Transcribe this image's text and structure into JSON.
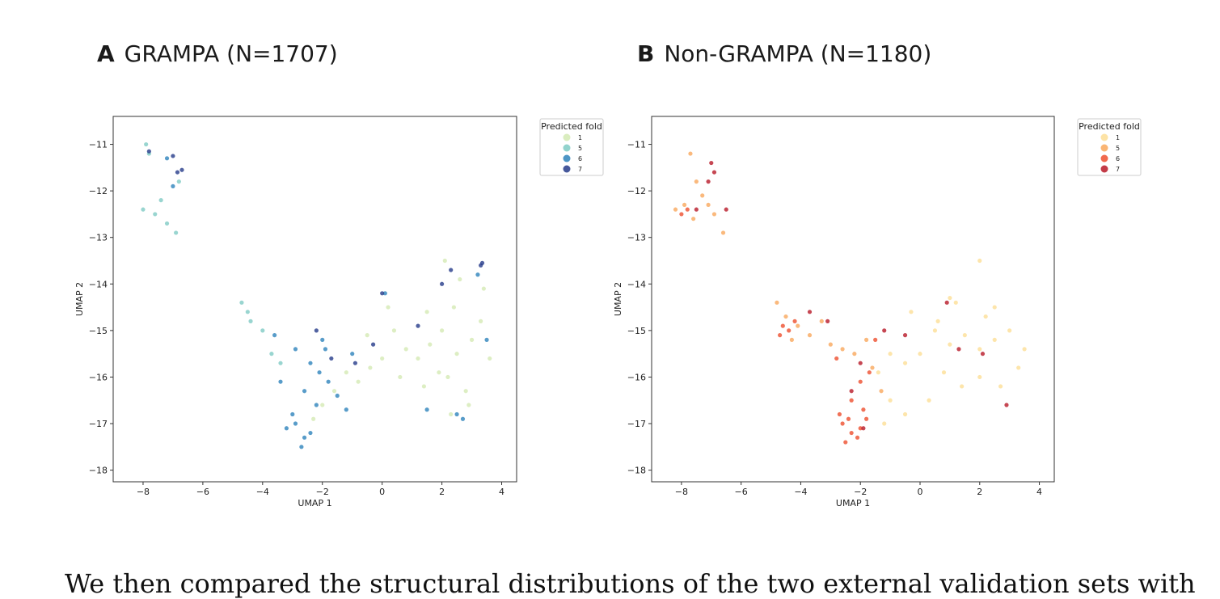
{
  "panels": [
    {
      "letter": "A",
      "heading": "GRAMPA (N=1707)"
    },
    {
      "letter": "B",
      "heading": "Non-GRAMPA (N=1180)"
    }
  ],
  "caption": "We then compared the structural distributions of the two external validation sets with",
  "chart_data": [
    {
      "type": "scatter",
      "title": "GRAMPA (N=1707)",
      "xlabel": "UMAP 1",
      "ylabel": "UMAP 2",
      "xlim": [
        -9,
        4.5
      ],
      "ylim": [
        -18.25,
        -10.4
      ],
      "xticks": [
        -8,
        -6,
        -4,
        -2,
        0,
        2,
        4
      ],
      "yticks": [
        -11,
        -12,
        -13,
        -14,
        -15,
        -16,
        -17,
        -18
      ],
      "grid": false,
      "legend": {
        "title": "Predicted fold",
        "placement": "outside-top-right"
      },
      "series": [
        {
          "name": "1",
          "color": "#d4eab4",
          "points": [
            [
              2.0,
              -15.0
            ],
            [
              2.5,
              -15.5
            ],
            [
              3.0,
              -15.2
            ],
            [
              2.2,
              -16.0
            ],
            [
              2.8,
              -16.3
            ],
            [
              3.3,
              -14.8
            ],
            [
              2.4,
              -14.5
            ],
            [
              1.6,
              -15.3
            ],
            [
              1.2,
              -15.6
            ],
            [
              0.8,
              -15.4
            ],
            [
              0.4,
              -15.0
            ],
            [
              0.0,
              -15.6
            ],
            [
              -0.4,
              -15.8
            ],
            [
              -0.8,
              -16.1
            ],
            [
              -1.2,
              -15.9
            ],
            [
              -1.6,
              -16.3
            ],
            [
              -2.0,
              -16.6
            ],
            [
              -2.3,
              -16.9
            ],
            [
              1.5,
              -14.6
            ],
            [
              2.6,
              -13.9
            ],
            [
              3.4,
              -14.1
            ],
            [
              2.9,
              -16.6
            ],
            [
              2.3,
              -16.8
            ],
            [
              1.4,
              -16.2
            ],
            [
              0.6,
              -16.0
            ],
            [
              0.2,
              -14.5
            ],
            [
              -0.5,
              -15.1
            ],
            [
              3.6,
              -15.6
            ],
            [
              2.1,
              -13.5
            ],
            [
              1.9,
              -15.9
            ]
          ]
        },
        {
          "name": "5",
          "color": "#7fcbc4",
          "points": [
            [
              -7.9,
              -11.0
            ],
            [
              -7.8,
              -11.2
            ],
            [
              -8.0,
              -12.4
            ],
            [
              -7.6,
              -12.5
            ],
            [
              -7.2,
              -12.7
            ],
            [
              -7.4,
              -12.2
            ],
            [
              -6.9,
              -12.9
            ],
            [
              -6.8,
              -11.8
            ],
            [
              -4.7,
              -14.4
            ],
            [
              -4.4,
              -14.8
            ],
            [
              -4.0,
              -15.0
            ],
            [
              -3.7,
              -15.5
            ],
            [
              -3.4,
              -15.7
            ],
            [
              -4.5,
              -14.6
            ]
          ]
        },
        {
          "name": "6",
          "color": "#2e83bb",
          "points": [
            [
              -3.2,
              -17.1
            ],
            [
              -2.9,
              -17.0
            ],
            [
              -2.6,
              -17.3
            ],
            [
              -2.4,
              -17.2
            ],
            [
              -2.7,
              -17.5
            ],
            [
              -3.0,
              -16.8
            ],
            [
              -2.2,
              -16.6
            ],
            [
              -2.6,
              -16.3
            ],
            [
              -2.1,
              -15.9
            ],
            [
              -1.8,
              -16.1
            ],
            [
              -1.5,
              -16.4
            ],
            [
              -1.2,
              -16.7
            ],
            [
              -3.6,
              -15.1
            ],
            [
              -2.9,
              -15.4
            ],
            [
              -2.4,
              -15.7
            ],
            [
              -1.9,
              -15.4
            ],
            [
              -1.0,
              -15.5
            ],
            [
              -7.0,
              -11.9
            ],
            [
              -7.2,
              -11.3
            ],
            [
              0.1,
              -14.2
            ],
            [
              2.5,
              -16.8
            ],
            [
              2.7,
              -16.9
            ],
            [
              3.2,
              -13.8
            ],
            [
              3.5,
              -15.2
            ],
            [
              1.5,
              -16.7
            ],
            [
              -3.4,
              -16.1
            ],
            [
              -2.0,
              -15.2
            ]
          ]
        },
        {
          "name": "7",
          "color": "#263b8a",
          "points": [
            [
              -7.8,
              -11.15
            ],
            [
              -7.0,
              -11.25
            ],
            [
              -6.7,
              -11.55
            ],
            [
              -6.85,
              -11.6
            ],
            [
              3.3,
              -13.6
            ],
            [
              3.35,
              -13.55
            ],
            [
              2.3,
              -13.7
            ],
            [
              0.0,
              -14.2
            ],
            [
              -0.3,
              -15.3
            ],
            [
              -0.9,
              -15.7
            ],
            [
              -1.7,
              -15.6
            ],
            [
              -2.2,
              -15.0
            ],
            [
              1.2,
              -14.9
            ],
            [
              2.0,
              -14.0
            ]
          ]
        }
      ]
    },
    {
      "type": "scatter",
      "title": "Non-GRAMPA (N=1180)",
      "xlabel": "UMAP 1",
      "ylabel": "UMAP 2",
      "xlim": [
        -9,
        4.5
      ],
      "ylim": [
        -18.25,
        -10.4
      ],
      "xticks": [
        -8,
        -6,
        -4,
        -2,
        0,
        2,
        4
      ],
      "yticks": [
        -11,
        -12,
        -13,
        -14,
        -15,
        -16,
        -17,
        -18
      ],
      "grid": false,
      "legend": {
        "title": "Predicted fold",
        "placement": "outside-top-right"
      },
      "series": [
        {
          "name": "1",
          "color": "#fdde96",
          "points": [
            [
              0.5,
              -15.0
            ],
            [
              1.0,
              -15.3
            ],
            [
              1.5,
              -15.1
            ],
            [
              2.0,
              -15.4
            ],
            [
              2.5,
              -15.2
            ],
            [
              3.0,
              -15.0
            ],
            [
              3.5,
              -15.4
            ],
            [
              2.2,
              -14.7
            ],
            [
              1.2,
              -14.4
            ],
            [
              0.6,
              -14.8
            ],
            [
              0.0,
              -15.5
            ],
            [
              -0.5,
              -15.7
            ],
            [
              -1.0,
              -15.5
            ],
            [
              -1.4,
              -15.9
            ],
            [
              -1.0,
              -16.5
            ],
            [
              -0.5,
              -16.8
            ],
            [
              0.3,
              -16.5
            ],
            [
              1.4,
              -16.2
            ],
            [
              2.0,
              -16.0
            ],
            [
              2.5,
              -14.5
            ],
            [
              3.3,
              -15.8
            ],
            [
              1.0,
              -14.3
            ],
            [
              -0.3,
              -14.6
            ],
            [
              2.7,
              -16.2
            ],
            [
              2.0,
              -13.5
            ],
            [
              -1.2,
              -17.0
            ],
            [
              0.8,
              -15.9
            ]
          ]
        },
        {
          "name": "5",
          "color": "#f9a85c",
          "points": [
            [
              -8.2,
              -12.4
            ],
            [
              -7.9,
              -12.3
            ],
            [
              -7.6,
              -12.6
            ],
            [
              -7.3,
              -12.1
            ],
            [
              -7.5,
              -11.8
            ],
            [
              -6.9,
              -12.5
            ],
            [
              -7.1,
              -12.3
            ],
            [
              -7.7,
              -11.2
            ],
            [
              -6.6,
              -12.9
            ],
            [
              -4.8,
              -14.4
            ],
            [
              -4.5,
              -14.7
            ],
            [
              -4.1,
              -14.9
            ],
            [
              -3.7,
              -15.1
            ],
            [
              -3.3,
              -14.8
            ],
            [
              -3.0,
              -15.3
            ],
            [
              -2.6,
              -15.4
            ],
            [
              -2.2,
              -15.5
            ],
            [
              -1.8,
              -15.2
            ],
            [
              -1.6,
              -15.8
            ],
            [
              -1.3,
              -16.3
            ],
            [
              -4.3,
              -15.2
            ]
          ]
        },
        {
          "name": "6",
          "color": "#ee4f2e",
          "points": [
            [
              -2.6,
              -17.0
            ],
            [
              -2.3,
              -17.2
            ],
            [
              -2.0,
              -17.1
            ],
            [
              -2.4,
              -16.9
            ],
            [
              -2.1,
              -17.3
            ],
            [
              -2.7,
              -16.8
            ],
            [
              -1.9,
              -16.7
            ],
            [
              -2.3,
              -16.5
            ],
            [
              -2.0,
              -16.1
            ],
            [
              -1.7,
              -15.9
            ],
            [
              -4.6,
              -14.9
            ],
            [
              -4.4,
              -15.0
            ],
            [
              -4.7,
              -15.1
            ],
            [
              -4.2,
              -14.8
            ],
            [
              -8.0,
              -12.5
            ],
            [
              -7.8,
              -12.4
            ],
            [
              -1.5,
              -15.2
            ],
            [
              -2.8,
              -15.6
            ],
            [
              -2.5,
              -17.4
            ],
            [
              -1.8,
              -16.9
            ]
          ]
        },
        {
          "name": "7",
          "color": "#b81928",
          "points": [
            [
              -7.0,
              -11.4
            ],
            [
              -6.9,
              -11.6
            ],
            [
              -7.1,
              -11.8
            ],
            [
              -7.5,
              -12.4
            ],
            [
              -6.5,
              -12.4
            ],
            [
              -3.1,
              -14.8
            ],
            [
              -3.7,
              -14.6
            ],
            [
              -2.0,
              -15.7
            ],
            [
              -1.2,
              -15.0
            ],
            [
              0.9,
              -14.4
            ],
            [
              1.3,
              -15.4
            ],
            [
              2.9,
              -16.6
            ],
            [
              -1.9,
              -17.1
            ],
            [
              -2.3,
              -16.3
            ],
            [
              2.1,
              -15.5
            ],
            [
              -0.5,
              -15.1
            ]
          ]
        }
      ]
    }
  ]
}
